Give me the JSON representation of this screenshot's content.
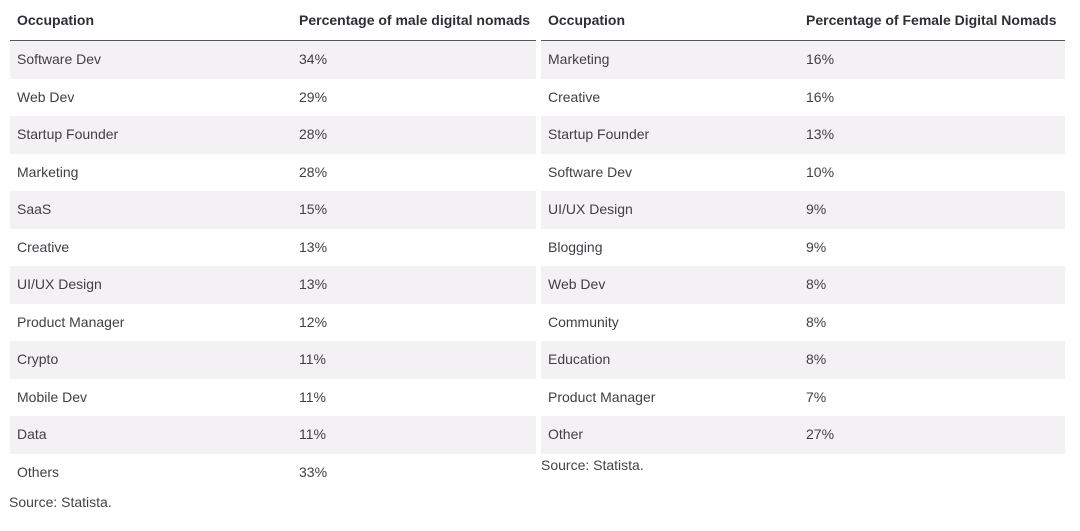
{
  "left_table": {
    "headers": [
      "Occupation",
      "Percentage of male digital nomads"
    ],
    "rows": [
      [
        "Software Dev",
        "34%"
      ],
      [
        "Web Dev",
        "29%"
      ],
      [
        "Startup Founder",
        "28%"
      ],
      [
        "Marketing",
        "28%"
      ],
      [
        "SaaS",
        "15%"
      ],
      [
        "Creative",
        "13%"
      ],
      [
        "UI/UX Design",
        "13%"
      ],
      [
        "Product Manager",
        "12%"
      ],
      [
        "Crypto",
        "11%"
      ],
      [
        "Mobile Dev",
        "11%"
      ],
      [
        "Data",
        "11%"
      ],
      [
        "Others",
        "33%"
      ]
    ],
    "source": "Source: Statista."
  },
  "right_table": {
    "headers": [
      "Occupation",
      "Percentage of Female Digital Nomads"
    ],
    "rows": [
      [
        "Marketing",
        "16%"
      ],
      [
        "Creative",
        "16%"
      ],
      [
        "Startup Founder",
        "13%"
      ],
      [
        "Software Dev",
        "10%"
      ],
      [
        "UI/UX Design",
        "9%"
      ],
      [
        "Blogging",
        "9%"
      ],
      [
        "Web Dev",
        "8%"
      ],
      [
        "Community",
        "8%"
      ],
      [
        "Education",
        "8%"
      ],
      [
        "Product Manager",
        "7%"
      ],
      [
        "Other",
        "27%"
      ]
    ],
    "source": "Source: Statista."
  }
}
